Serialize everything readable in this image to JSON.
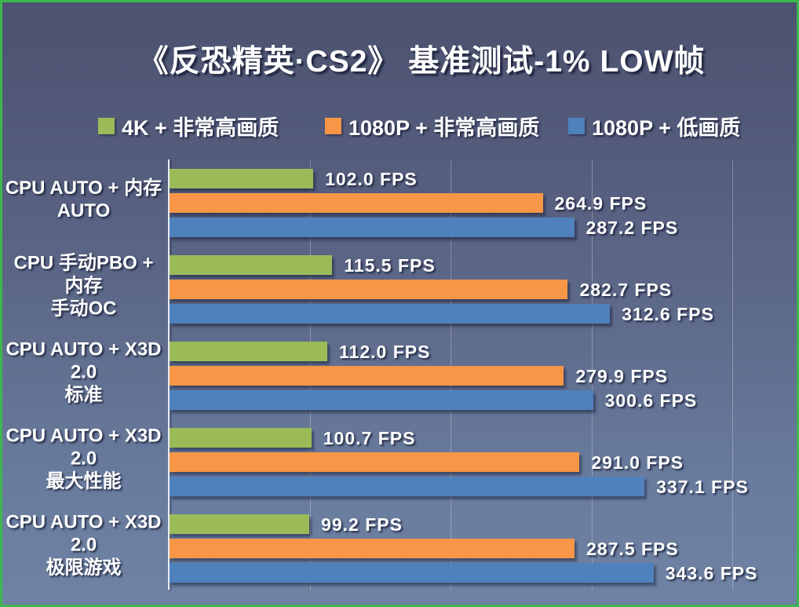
{
  "chart_data": {
    "type": "bar",
    "orientation": "horizontal",
    "title": "《反恐精英·CS2》 基准测试-1% LOW帧",
    "value_suffix": " FPS",
    "categories": [
      "CPU AUTO + 内存 AUTO",
      "CPU 手动PBO + 内存 手动OC",
      "CPU AUTO + X3D 2.0 标准",
      "CPU AUTO + X3D 2.0 最大性能",
      "CPU AUTO + X3D 2.0 极限游戏"
    ],
    "category_lines": [
      [
        "CPU AUTO + 内存",
        "AUTO"
      ],
      [
        "CPU 手动PBO + 内存",
        "手动OC"
      ],
      [
        "CPU AUTO + X3D 2.0",
        "标准"
      ],
      [
        "CPU AUTO + X3D 2.0",
        "最大性能"
      ],
      [
        "CPU AUTO + X3D 2.0",
        "极限游戏"
      ]
    ],
    "series": [
      {
        "name": "4K + 非常高画质",
        "color": "#9BBB59",
        "values": [
          102.0,
          115.5,
          112.0,
          100.7,
          99.2
        ]
      },
      {
        "name": "1080P + 非常高画质",
        "color": "#F79646",
        "values": [
          264.9,
          282.7,
          279.9,
          291.0,
          287.5
        ]
      },
      {
        "name": "1080P + 低画质",
        "color": "#4F81BD",
        "values": [
          287.2,
          312.6,
          300.6,
          337.1,
          343.6
        ]
      }
    ],
    "xlim": [
      0,
      444
    ],
    "gridline_values": [
      100,
      200,
      300,
      400
    ],
    "grid": "vertical-only",
    "legend_position": "top",
    "axis_labels_visible": false
  },
  "colors": {
    "background_top": "#4C526F",
    "background_bottom": "#6F82A3",
    "frame_border": "#3DB74D",
    "text": "#FFFFFF",
    "gridline": "rgba(255,255,255,0.27)",
    "axis_line": "#E9EDF5"
  }
}
